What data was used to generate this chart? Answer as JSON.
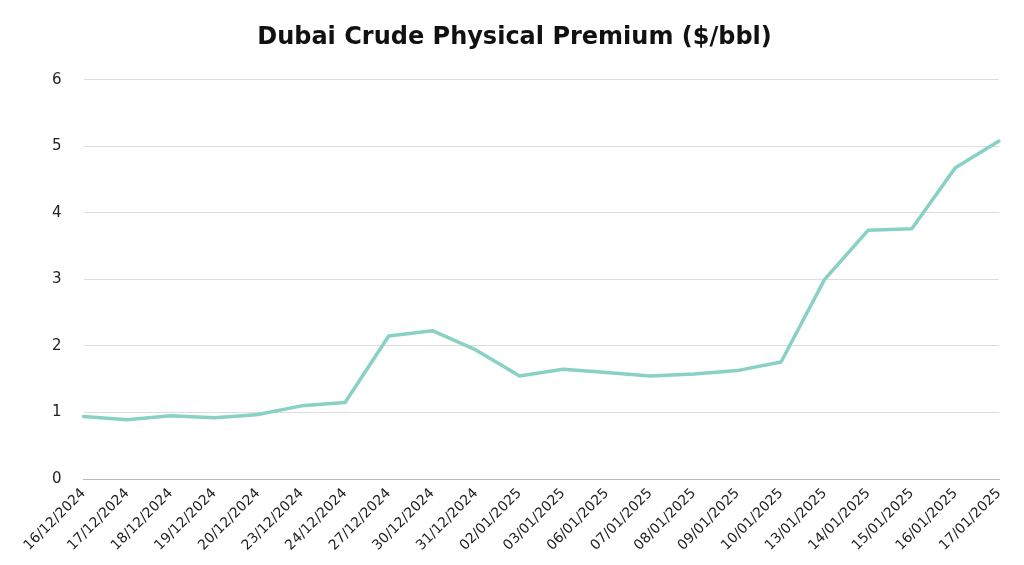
{
  "chart_data": {
    "type": "line",
    "title": "Dubai Crude Physical Premium ($/bbl)",
    "categories": [
      "16/12/2024",
      "17/12/2024",
      "18/12/2024",
      "19/12/2024",
      "20/12/2024",
      "23/12/2024",
      "24/12/2024",
      "27/12/2024",
      "30/12/2024",
      "31/12/2024",
      "02/01/2025",
      "03/01/2025",
      "06/01/2025",
      "07/01/2025",
      "08/01/2025",
      "09/01/2025",
      "10/01/2025",
      "13/01/2025",
      "14/01/2025",
      "15/01/2025",
      "16/01/2025",
      "17/01/2025"
    ],
    "series": [
      {
        "color": "#88d1c4",
        "values": [
          0.94,
          0.89,
          0.95,
          0.92,
          0.97,
          1.1,
          1.15,
          2.15,
          2.23,
          1.94,
          1.55,
          1.65,
          1.6,
          1.55,
          1.58,
          1.63,
          1.76,
          3.0,
          3.74,
          3.76,
          4.68,
          5.08
        ]
      }
    ],
    "ylim": [
      0,
      6
    ],
    "yticks": [
      0,
      1,
      2,
      3,
      4,
      5,
      6
    ],
    "grid": "y",
    "legend": false,
    "marker": "none",
    "line_style": "solid"
  }
}
